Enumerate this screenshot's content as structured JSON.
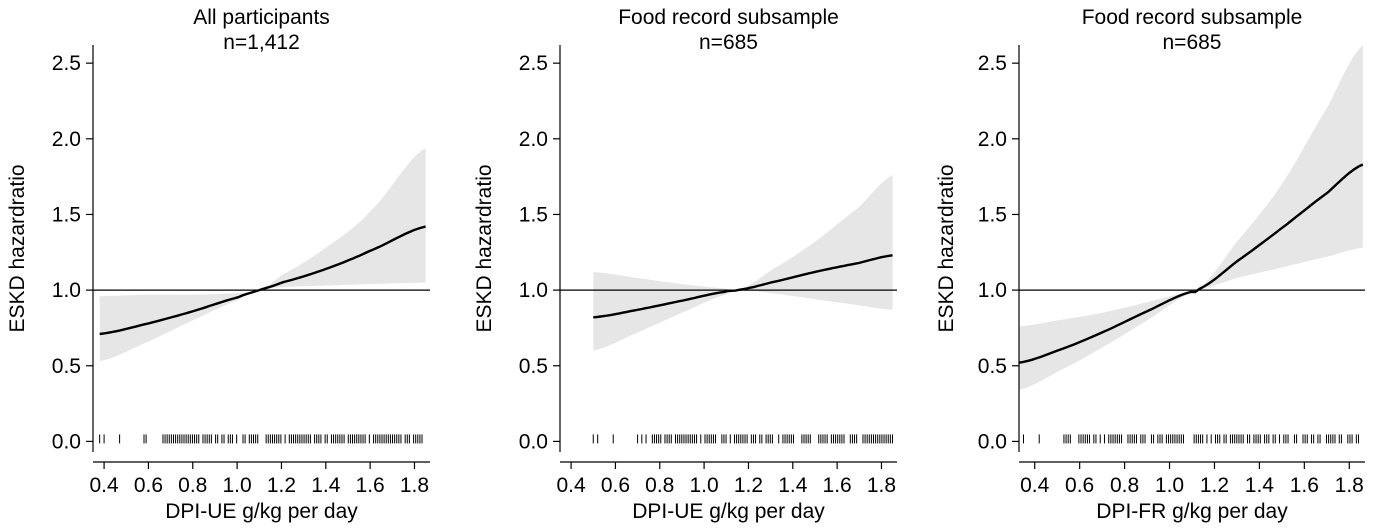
{
  "chart_data": [
    {
      "type": "line",
      "title": "All participants",
      "subtitle": "n=1,412",
      "xlabel": "DPI-UE g/kg per day",
      "ylabel": "ESKD hazardratio",
      "xlim": [
        0.35,
        1.87
      ],
      "ylim": [
        -0.07,
        2.62
      ],
      "xticks": [
        0.4,
        0.6,
        0.8,
        1.0,
        1.2,
        1.4,
        1.6,
        1.8
      ],
      "xtick_labels": [
        "0.4",
        "0.6",
        "0.8",
        "1.0",
        "1.2",
        "1.4",
        "1.6",
        "1.8"
      ],
      "yticks": [
        0.0,
        0.5,
        1.0,
        1.5,
        2.0,
        2.5
      ],
      "ytick_labels": [
        "0.0",
        "0.5",
        "1.0",
        "1.5",
        "2.0",
        "2.5"
      ],
      "reference_line": 1.0,
      "series": [
        {
          "x": [
            0.38,
            0.6,
            0.8,
            1.0,
            1.1,
            1.2,
            1.4,
            1.6,
            1.85
          ],
          "y": [
            0.71,
            0.78,
            0.86,
            0.95,
            1.0,
            1.05,
            1.14,
            1.26,
            1.42
          ],
          "ci_lower": [
            0.53,
            0.66,
            0.8,
            0.93,
            1.0,
            1.02,
            1.03,
            1.04,
            1.05
          ],
          "ci_upper": [
            0.96,
            0.97,
            0.97,
            0.98,
            1.0,
            1.1,
            1.28,
            1.52,
            1.94
          ]
        }
      ],
      "rug_range": [
        0.38,
        1.85
      ],
      "grid": false
    },
    {
      "type": "line",
      "title": "Food record subsample",
      "subtitle": "n=685",
      "xlabel": "DPI-UE g/kg per day",
      "ylabel": "ESKD hazardratio",
      "xlim": [
        0.35,
        1.87
      ],
      "ylim": [
        -0.07,
        2.62
      ],
      "xticks": [
        0.4,
        0.6,
        0.8,
        1.0,
        1.2,
        1.4,
        1.6,
        1.8
      ],
      "xtick_labels": [
        "0.4",
        "0.6",
        "0.8",
        "1.0",
        "1.2",
        "1.4",
        "1.6",
        "1.8"
      ],
      "yticks": [
        0.0,
        0.5,
        1.0,
        1.5,
        2.0,
        2.5
      ],
      "ytick_labels": [
        "0.0",
        "0.5",
        "1.0",
        "1.5",
        "2.0",
        "2.5"
      ],
      "reference_line": 1.0,
      "series": [
        {
          "x": [
            0.5,
            0.7,
            0.9,
            1.1,
            1.15,
            1.3,
            1.5,
            1.7,
            1.85
          ],
          "y": [
            0.82,
            0.87,
            0.93,
            0.99,
            1.0,
            1.05,
            1.12,
            1.18,
            1.23
          ],
          "ci_lower": [
            0.6,
            0.72,
            0.85,
            0.97,
            1.0,
            0.98,
            0.94,
            0.9,
            0.87
          ],
          "ci_upper": [
            1.12,
            1.08,
            1.04,
            1.01,
            1.0,
            1.13,
            1.32,
            1.55,
            1.76
          ]
        }
      ],
      "rug_range": [
        0.5,
        1.85
      ],
      "grid": false
    },
    {
      "type": "line",
      "title": "Food record subsample",
      "subtitle": "n=685",
      "xlabel": "DPI-FR g/kg per day",
      "ylabel": "ESKD hazardratio",
      "xlim": [
        0.33,
        1.87
      ],
      "ylim": [
        -0.07,
        2.62
      ],
      "xticks": [
        0.4,
        0.6,
        0.8,
        1.0,
        1.2,
        1.4,
        1.6,
        1.8
      ],
      "xtick_labels": [
        "0.4",
        "0.6",
        "0.8",
        "1.0",
        "1.2",
        "1.4",
        "1.6",
        "1.8"
      ],
      "yticks": [
        0.0,
        0.5,
        1.0,
        1.5,
        2.0,
        2.5
      ],
      "ytick_labels": [
        "0.0",
        "0.5",
        "1.0",
        "1.5",
        "2.0",
        "2.5"
      ],
      "reference_line": 1.0,
      "series": [
        {
          "x": [
            0.33,
            0.5,
            0.7,
            0.9,
            1.1,
            1.12,
            1.3,
            1.5,
            1.7,
            1.86
          ],
          "y": [
            0.52,
            0.6,
            0.72,
            0.86,
            0.99,
            1.0,
            1.19,
            1.41,
            1.64,
            1.83
          ],
          "ci_lower": [
            0.34,
            0.46,
            0.62,
            0.8,
            0.98,
            1.0,
            1.08,
            1.15,
            1.22,
            1.28
          ],
          "ci_upper": [
            0.76,
            0.8,
            0.85,
            0.92,
            0.99,
            1.0,
            1.32,
            1.7,
            2.2,
            2.62
          ]
        }
      ],
      "rug_range": [
        0.33,
        1.86
      ],
      "grid": false
    }
  ]
}
